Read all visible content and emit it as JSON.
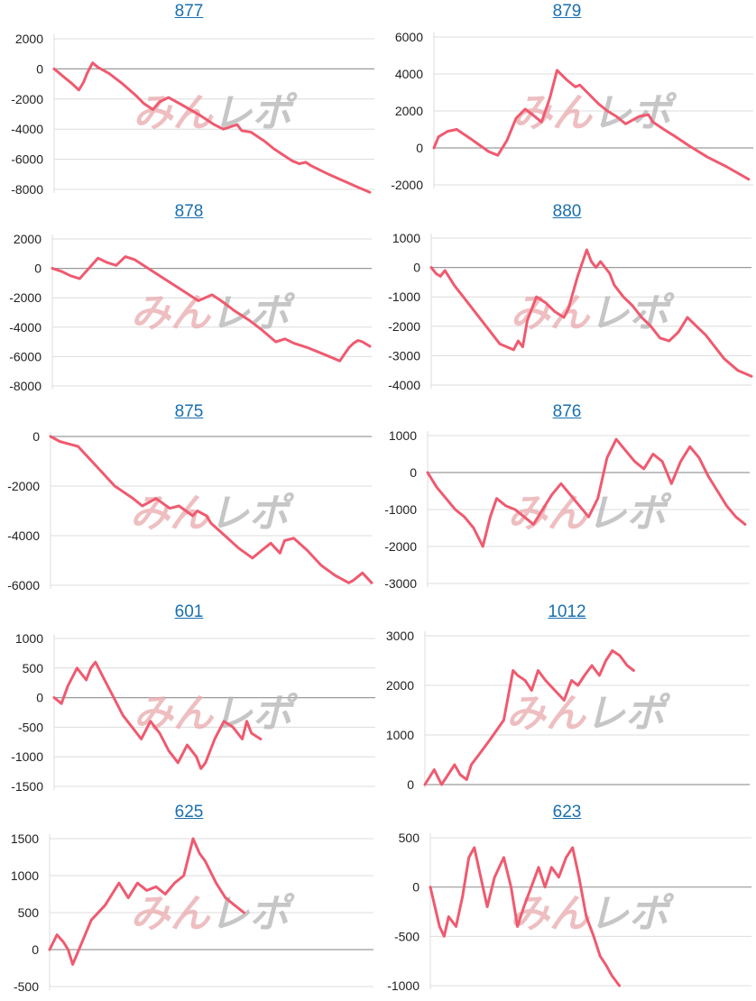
{
  "page": {
    "watermark": "みんレポ",
    "watermark_color_left": "#e9a9ad",
    "watermark_color_right": "#b4b4b4"
  },
  "theme": {
    "line_color": "#ef5a6f",
    "grid_color": "#dcdcdc",
    "zero_line_color": "#9a9a9a",
    "title_color": "#1a6fb0"
  },
  "chart_data": [
    {
      "type": "line",
      "title": "877",
      "xlabel": "",
      "ylabel": "",
      "ylim": [
        -8000,
        2000
      ],
      "yticks": [
        2000,
        0,
        -2000,
        -4000,
        -6000,
        -8000
      ],
      "x": [
        0,
        4,
        10,
        18,
        27,
        32,
        36,
        42,
        48,
        60,
        75,
        90,
        98,
        108,
        115,
        125,
        140,
        160,
        175,
        185,
        200,
        205,
        215,
        230,
        240,
        250,
        260,
        268,
        275,
        280,
        290,
        300,
        315,
        330,
        345
      ],
      "values": [
        0,
        -200,
        -500,
        -900,
        -1400,
        -900,
        -300,
        400,
        100,
        -300,
        -1000,
        -1800,
        -2300,
        -2700,
        -2200,
        -1900,
        -2400,
        -3100,
        -3700,
        -4000,
        -3700,
        -4100,
        -4200,
        -4800,
        -5300,
        -5700,
        -6100,
        -6300,
        -6200,
        -6400,
        -6700,
        -7000,
        -7400,
        -7800,
        -8200
      ]
    },
    {
      "type": "line",
      "title": "879",
      "xlabel": "",
      "ylabel": "",
      "ylim": [
        -2000,
        6000
      ],
      "yticks": [
        6000,
        4000,
        2000,
        0,
        -2000
      ],
      "x": [
        0,
        5,
        15,
        25,
        40,
        60,
        70,
        80,
        90,
        100,
        108,
        118,
        127,
        135,
        145,
        155,
        160,
        170,
        180,
        190,
        200,
        210,
        225,
        235,
        240,
        252,
        265,
        280,
        300,
        320,
        345
      ],
      "values": [
        0,
        600,
        900,
        1000,
        500,
        -200,
        -400,
        400,
        1600,
        2100,
        1800,
        1400,
        2700,
        4200,
        3700,
        3300,
        3400,
        2900,
        2400,
        2000,
        1700,
        1300,
        1700,
        1800,
        1400,
        1000,
        600,
        100,
        -500,
        -1000,
        -1700
      ]
    },
    {
      "type": "line",
      "title": "878",
      "xlabel": "",
      "ylabel": "",
      "ylim": [
        -8000,
        2000
      ],
      "yticks": [
        2000,
        0,
        -2000,
        -4000,
        -6000,
        -8000
      ],
      "x": [
        0,
        10,
        20,
        30,
        40,
        50,
        60,
        70,
        80,
        90,
        110,
        130,
        150,
        160,
        175,
        185,
        200,
        215,
        230,
        245,
        255,
        265,
        280,
        300,
        315,
        325,
        330,
        335,
        340,
        348
      ],
      "values": [
        0,
        -200,
        -500,
        -700,
        0,
        700,
        400,
        200,
        800,
        600,
        -200,
        -1000,
        -1800,
        -2200,
        -1800,
        -2200,
        -2900,
        -3500,
        -4200,
        -5000,
        -4800,
        -5100,
        -5400,
        -5900,
        -6300,
        -5400,
        -5100,
        -4900,
        -5000,
        -5300
      ]
    },
    {
      "type": "line",
      "title": "880",
      "xlabel": "",
      "ylabel": "",
      "ylim": [
        -4000,
        1000
      ],
      "yticks": [
        1000,
        0,
        -1000,
        -2000,
        -3000,
        -4000
      ],
      "x": [
        0,
        5,
        10,
        15,
        25,
        40,
        60,
        75,
        90,
        95,
        100,
        105,
        115,
        125,
        135,
        145,
        150,
        160,
        170,
        175,
        180,
        185,
        190,
        195,
        200,
        210,
        220,
        230,
        240,
        250,
        260,
        270,
        280,
        290,
        300,
        310,
        320,
        335,
        350
      ],
      "values": [
        0,
        -200,
        -300,
        -100,
        -600,
        -1200,
        -2000,
        -2600,
        -2800,
        -2500,
        -2700,
        -1800,
        -1000,
        -1200,
        -1500,
        -1700,
        -1400,
        -300,
        600,
        200,
        0,
        200,
        0,
        -200,
        -600,
        -1000,
        -1300,
        -1700,
        -2000,
        -2400,
        -2500,
        -2200,
        -1700,
        -2000,
        -2300,
        -2700,
        -3100,
        -3500,
        -3700
      ]
    },
    {
      "type": "line",
      "title": "875",
      "xlabel": "",
      "ylabel": "",
      "ylim": [
        -6000,
        0
      ],
      "yticks": [
        0,
        -2000,
        -4000,
        -6000
      ],
      "x": [
        0,
        10,
        20,
        30,
        50,
        70,
        90,
        100,
        115,
        130,
        140,
        155,
        160,
        170,
        175,
        190,
        205,
        220,
        230,
        240,
        250,
        255,
        265,
        280,
        295,
        310,
        325,
        330,
        340,
        350
      ],
      "values": [
        0,
        -200,
        -300,
        -400,
        -1200,
        -2000,
        -2500,
        -2800,
        -2500,
        -2900,
        -2800,
        -3200,
        -3000,
        -3200,
        -3500,
        -4000,
        -4500,
        -4900,
        -4600,
        -4300,
        -4700,
        -4200,
        -4100,
        -4600,
        -5200,
        -5600,
        -5900,
        -5800,
        -5500,
        -5900
      ]
    },
    {
      "type": "line",
      "title": "876",
      "xlabel": "",
      "ylabel": "",
      "ylim": [
        -3000,
        1000
      ],
      "yticks": [
        1000,
        0,
        -1000,
        -2000,
        -3000
      ],
      "x": [
        0,
        10,
        20,
        30,
        40,
        50,
        60,
        68,
        75,
        85,
        95,
        105,
        115,
        125,
        135,
        145,
        155,
        165,
        175,
        185,
        195,
        205,
        215,
        225,
        235,
        245,
        255,
        265,
        275,
        285,
        295,
        305,
        315,
        325,
        335,
        345
      ],
      "values": [
        0,
        -400,
        -700,
        -1000,
        -1200,
        -1500,
        -2000,
        -1200,
        -700,
        -900,
        -1000,
        -1200,
        -1400,
        -1000,
        -600,
        -300,
        -600,
        -900,
        -1200,
        -700,
        400,
        900,
        600,
        300,
        100,
        500,
        300,
        -300,
        300,
        700,
        400,
        -100,
        -500,
        -900,
        -1200,
        -1400
      ]
    },
    {
      "type": "line",
      "title": "601",
      "xlabel": "",
      "ylabel": "",
      "ylim": [
        -1500,
        1000
      ],
      "yticks": [
        1000,
        500,
        0,
        -500,
        -1000,
        -1500
      ],
      "x": [
        0,
        8,
        15,
        25,
        30,
        35,
        40,
        45,
        55,
        65,
        75,
        85,
        95,
        105,
        115,
        125,
        135,
        145,
        155,
        160,
        165,
        175,
        185,
        195,
        205,
        210,
        215,
        225
      ],
      "values": [
        0,
        -100,
        200,
        500,
        400,
        300,
        500,
        600,
        300,
        0,
        -300,
        -500,
        -700,
        -400,
        -600,
        -900,
        -1100,
        -800,
        -1000,
        -1200,
        -1100,
        -700,
        -400,
        -500,
        -700,
        -400,
        -600,
        -700
      ]
    },
    {
      "type": "line",
      "title": "1012",
      "xlabel": "",
      "ylabel": "",
      "ylim": [
        0,
        3000
      ],
      "yticks": [
        3000,
        2000,
        1000,
        0
      ],
      "x": [
        0,
        10,
        18,
        25,
        32,
        38,
        45,
        50,
        58,
        70,
        85,
        95,
        100,
        108,
        115,
        122,
        130,
        140,
        150,
        158,
        165,
        172,
        180,
        188,
        195,
        202,
        210,
        218,
        225
      ],
      "values": [
        0,
        300,
        0,
        200,
        400,
        200,
        100,
        400,
        600,
        900,
        1300,
        2300,
        2200,
        2100,
        1900,
        2300,
        2100,
        1900,
        1700,
        2100,
        2000,
        2200,
        2400,
        2200,
        2500,
        2700,
        2600,
        2400,
        2300
      ]
    },
    {
      "type": "line",
      "title": "625",
      "xlabel": "",
      "ylabel": "",
      "ylim": [
        -500,
        1500
      ],
      "yticks": [
        1500,
        1000,
        500,
        0,
        -500
      ],
      "x": [
        0,
        8,
        15,
        20,
        25,
        35,
        45,
        60,
        75,
        85,
        95,
        105,
        115,
        125,
        135,
        145,
        155,
        162,
        168,
        172,
        180,
        190,
        200,
        210
      ],
      "values": [
        0,
        200,
        100,
        0,
        -200,
        100,
        400,
        600,
        900,
        700,
        900,
        800,
        850,
        750,
        900,
        1000,
        1500,
        1300,
        1200,
        1100,
        900,
        700,
        600,
        500
      ]
    },
    {
      "type": "line",
      "title": "623",
      "xlabel": "",
      "ylabel": "",
      "ylim": [
        -1000,
        500
      ],
      "yticks": [
        500,
        0,
        -500,
        -1000
      ],
      "x": [
        0,
        5,
        10,
        15,
        20,
        28,
        35,
        42,
        48,
        55,
        62,
        70,
        80,
        88,
        95,
        102,
        110,
        118,
        125,
        132,
        140,
        148,
        155,
        162,
        170,
        178,
        185,
        192,
        198,
        202,
        206
      ],
      "values": [
        0,
        -200,
        -400,
        -500,
        -300,
        -400,
        -100,
        300,
        400,
        100,
        -200,
        100,
        300,
        0,
        -400,
        -200,
        0,
        200,
        0,
        200,
        100,
        300,
        400,
        100,
        -300,
        -500,
        -700,
        -800,
        -900,
        -950,
        -1000
      ]
    }
  ]
}
